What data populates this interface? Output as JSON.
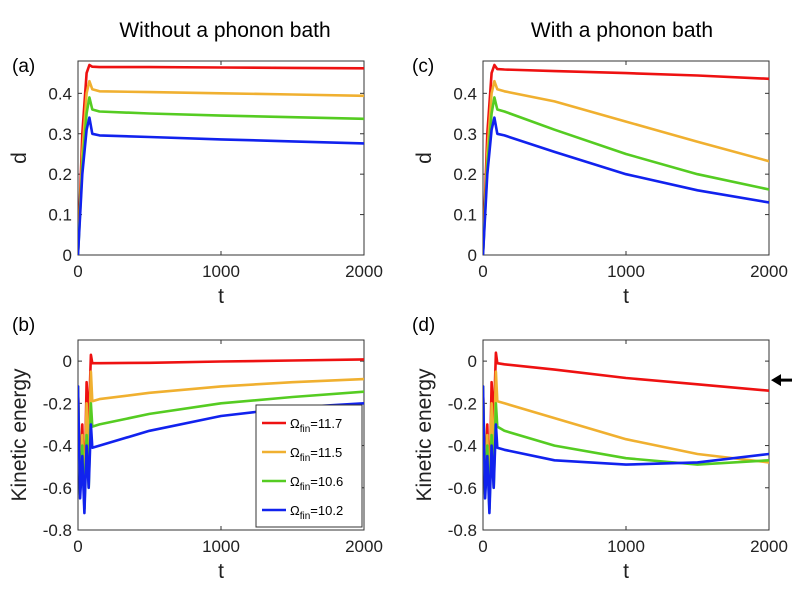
{
  "column_titles": {
    "left": "Without a phonon bath",
    "right": "With a phonon bath"
  },
  "colors": {
    "s117": "#ee1111",
    "s115": "#f0b030",
    "s106": "#55cc22",
    "s102": "#1122ee"
  },
  "legend": {
    "entries": [
      {
        "sym": "Ω",
        "sub": "fin",
        "val": "=11.7",
        "color": "#ee1111"
      },
      {
        "sym": "Ω",
        "sub": "fin",
        "val": "=11.5",
        "color": "#f0b030"
      },
      {
        "sym": "Ω",
        "sub": "fin",
        "val": "=10.6",
        "color": "#55cc22"
      },
      {
        "sym": "Ω",
        "sub": "fin",
        "val": "=10.2",
        "color": "#1122ee"
      }
    ]
  },
  "chart_data": [
    {
      "id": "a",
      "panel_label": "(a)",
      "type": "line",
      "xlabel": "t",
      "ylabel": "d",
      "xlim": [
        0,
        2000
      ],
      "ylim": [
        0,
        0.48
      ],
      "xticks": [
        0,
        1000,
        2000
      ],
      "xtick_labels": [
        "0",
        "1000",
        "2000"
      ],
      "yticks": [
        0,
        0.1,
        0.2,
        0.3,
        0.4
      ],
      "ytick_labels": [
        "0",
        "0.1",
        "0.2",
        "0.3",
        "0.4"
      ],
      "legend": false,
      "arrow": false,
      "series": [
        {
          "name": "Ωfin=11.7",
          "color": "#ee1111",
          "x": [
            0,
            30,
            60,
            80,
            100,
            150,
            500,
            1000,
            1500,
            2000
          ],
          "y": [
            0,
            0.3,
            0.45,
            0.47,
            0.466,
            0.465,
            0.465,
            0.464,
            0.463,
            0.462
          ]
        },
        {
          "name": "Ωfin=11.5",
          "color": "#f0b030",
          "x": [
            0,
            30,
            60,
            80,
            100,
            150,
            500,
            1000,
            1500,
            2000
          ],
          "y": [
            0,
            0.25,
            0.4,
            0.43,
            0.41,
            0.405,
            0.403,
            0.4,
            0.397,
            0.394
          ]
        },
        {
          "name": "Ωfin=10.6",
          "color": "#55cc22",
          "x": [
            0,
            30,
            60,
            80,
            100,
            150,
            500,
            1000,
            1500,
            2000
          ],
          "y": [
            0,
            0.22,
            0.35,
            0.39,
            0.36,
            0.355,
            0.35,
            0.345,
            0.341,
            0.337
          ]
        },
        {
          "name": "Ωfin=10.2",
          "color": "#1122ee",
          "x": [
            0,
            30,
            60,
            80,
            100,
            150,
            500,
            1000,
            1500,
            2000
          ],
          "y": [
            0,
            0.2,
            0.31,
            0.34,
            0.3,
            0.296,
            0.292,
            0.286,
            0.281,
            0.276
          ]
        }
      ]
    },
    {
      "id": "c",
      "panel_label": "(c)",
      "type": "line",
      "xlabel": "t",
      "ylabel": "d",
      "xlim": [
        0,
        2000
      ],
      "ylim": [
        0,
        0.48
      ],
      "xticks": [
        0,
        1000,
        2000
      ],
      "xtick_labels": [
        "0",
        "1000",
        "2000"
      ],
      "yticks": [
        0,
        0.1,
        0.2,
        0.3,
        0.4
      ],
      "ytick_labels": [
        "0",
        "0.1",
        "0.2",
        "0.3",
        "0.4"
      ],
      "legend": false,
      "arrow": false,
      "series": [
        {
          "name": "Ωfin=11.7",
          "color": "#ee1111",
          "x": [
            0,
            30,
            60,
            80,
            100,
            150,
            500,
            1000,
            1500,
            2000
          ],
          "y": [
            0,
            0.3,
            0.45,
            0.47,
            0.46,
            0.459,
            0.455,
            0.45,
            0.444,
            0.436
          ]
        },
        {
          "name": "Ωfin=11.5",
          "color": "#f0b030",
          "x": [
            0,
            30,
            60,
            80,
            100,
            150,
            500,
            1000,
            1500,
            2000
          ],
          "y": [
            0,
            0.25,
            0.4,
            0.43,
            0.41,
            0.405,
            0.38,
            0.33,
            0.28,
            0.232
          ]
        },
        {
          "name": "Ωfin=10.6",
          "color": "#55cc22",
          "x": [
            0,
            30,
            60,
            80,
            100,
            150,
            500,
            1000,
            1500,
            2000
          ],
          "y": [
            0,
            0.22,
            0.35,
            0.39,
            0.36,
            0.355,
            0.31,
            0.25,
            0.2,
            0.162
          ]
        },
        {
          "name": "Ωfin=10.2",
          "color": "#1122ee",
          "x": [
            0,
            30,
            60,
            80,
            100,
            150,
            500,
            1000,
            1500,
            2000
          ],
          "y": [
            0,
            0.2,
            0.31,
            0.34,
            0.3,
            0.296,
            0.255,
            0.2,
            0.16,
            0.13
          ]
        }
      ]
    },
    {
      "id": "b",
      "panel_label": "(b)",
      "type": "line",
      "xlabel": "t",
      "ylabel": "Kinetic energy",
      "xlim": [
        0,
        2000
      ],
      "ylim": [
        -0.8,
        0.1
      ],
      "xticks": [
        0,
        1000,
        2000
      ],
      "xtick_labels": [
        "0",
        "1000",
        "2000"
      ],
      "yticks": [
        -0.8,
        -0.6,
        -0.4,
        -0.2,
        0
      ],
      "ytick_labels": [
        "-0.8",
        "-0.6",
        "-0.4",
        "-0.2",
        "0"
      ],
      "legend": true,
      "arrow": false,
      "series": [
        {
          "name": "Ωfin=11.7",
          "color": "#ee1111",
          "x": [
            0,
            15,
            30,
            45,
            60,
            75,
            90,
            100,
            150,
            500,
            1000,
            1500,
            2000
          ],
          "y": [
            -0.12,
            -0.6,
            -0.3,
            -0.65,
            -0.1,
            -0.3,
            0.03,
            -0.01,
            -0.01,
            -0.008,
            -0.002,
            0.003,
            0.008
          ]
        },
        {
          "name": "Ωfin=11.5",
          "color": "#f0b030",
          "x": [
            0,
            15,
            30,
            45,
            60,
            75,
            90,
            100,
            150,
            500,
            1000,
            1500,
            2000
          ],
          "y": [
            -0.12,
            -0.62,
            -0.35,
            -0.7,
            -0.2,
            -0.5,
            -0.05,
            -0.19,
            -0.18,
            -0.15,
            -0.12,
            -0.1,
            -0.085
          ]
        },
        {
          "name": "Ωfin=10.6",
          "color": "#55cc22",
          "x": [
            0,
            15,
            30,
            45,
            60,
            75,
            90,
            100,
            150,
            500,
            1000,
            1500,
            2000
          ],
          "y": [
            -0.12,
            -0.63,
            -0.4,
            -0.7,
            -0.35,
            -0.6,
            -0.2,
            -0.31,
            -0.3,
            -0.25,
            -0.2,
            -0.17,
            -0.145
          ]
        },
        {
          "name": "Ωfin=10.2",
          "color": "#1122ee",
          "x": [
            0,
            15,
            30,
            45,
            60,
            75,
            90,
            100,
            150,
            500,
            1000,
            1500,
            2000
          ],
          "y": [
            -0.12,
            -0.65,
            -0.45,
            -0.72,
            -0.4,
            -0.6,
            -0.3,
            -0.41,
            -0.4,
            -0.33,
            -0.26,
            -0.22,
            -0.2
          ]
        }
      ]
    },
    {
      "id": "d",
      "panel_label": "(d)",
      "type": "line",
      "xlabel": "t",
      "ylabel": "Kinetic energy",
      "xlim": [
        0,
        2000
      ],
      "ylim": [
        -0.8,
        0.1
      ],
      "xticks": [
        0,
        1000,
        2000
      ],
      "xtick_labels": [
        "0",
        "1000",
        "2000"
      ],
      "yticks": [
        -0.8,
        -0.6,
        -0.4,
        -0.2,
        0
      ],
      "ytick_labels": [
        "-0.8",
        "-0.6",
        "-0.4",
        "-0.2",
        "0"
      ],
      "legend": false,
      "arrow": true,
      "arrow_y": -0.09,
      "series": [
        {
          "name": "Ωfin=11.7",
          "color": "#ee1111",
          "x": [
            0,
            15,
            30,
            45,
            60,
            75,
            90,
            100,
            150,
            500,
            1000,
            1500,
            2000
          ],
          "y": [
            -0.12,
            -0.6,
            -0.3,
            -0.65,
            -0.1,
            -0.3,
            0.04,
            -0.01,
            -0.015,
            -0.04,
            -0.08,
            -0.11,
            -0.14
          ]
        },
        {
          "name": "Ωfin=11.5",
          "color": "#f0b030",
          "x": [
            0,
            15,
            30,
            45,
            60,
            75,
            90,
            100,
            150,
            500,
            1000,
            1500,
            2000
          ],
          "y": [
            -0.12,
            -0.62,
            -0.35,
            -0.7,
            -0.2,
            -0.5,
            -0.05,
            -0.19,
            -0.2,
            -0.27,
            -0.37,
            -0.44,
            -0.48
          ]
        },
        {
          "name": "Ωfin=10.6",
          "color": "#55cc22",
          "x": [
            0,
            15,
            30,
            45,
            60,
            75,
            90,
            100,
            150,
            500,
            1000,
            1500,
            2000
          ],
          "y": [
            -0.12,
            -0.63,
            -0.4,
            -0.7,
            -0.35,
            -0.6,
            -0.2,
            -0.31,
            -0.33,
            -0.4,
            -0.46,
            -0.49,
            -0.47
          ]
        },
        {
          "name": "Ωfin=10.2",
          "color": "#1122ee",
          "x": [
            0,
            15,
            30,
            45,
            60,
            75,
            90,
            100,
            150,
            500,
            1000,
            1500,
            2000
          ],
          "y": [
            -0.12,
            -0.65,
            -0.45,
            -0.72,
            -0.4,
            -0.6,
            -0.3,
            -0.41,
            -0.42,
            -0.47,
            -0.49,
            -0.48,
            -0.44
          ]
        }
      ]
    }
  ]
}
